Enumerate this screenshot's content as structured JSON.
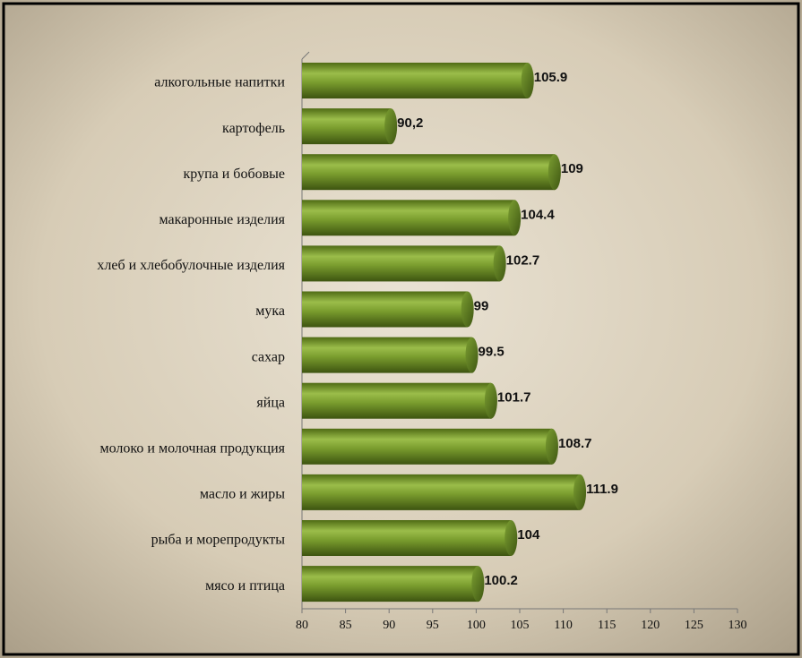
{
  "chart_data": {
    "type": "bar",
    "orientation": "horizontal",
    "categories": [
      "алкогольные напитки",
      "картофель",
      "крупа и бобовые",
      "макаронные изделия",
      "хлеб и хлебобулочные изделия",
      "мука",
      "сахар",
      "яйца",
      "молоко и молочная продукция",
      "масло и жиры",
      "рыба и морепродукты",
      "мясо и птица"
    ],
    "values": [
      105.9,
      90.2,
      109,
      104.4,
      102.7,
      99,
      99.5,
      101.7,
      108.7,
      111.9,
      104,
      100.2
    ],
    "value_labels": [
      "105.9",
      "90,2",
      "109",
      "104.4",
      "102.7",
      "99",
      "99.5",
      "101.7",
      "108.7",
      "111.9",
      "104",
      "100.2"
    ],
    "color": "#6b8e23",
    "xlim": [
      80,
      130
    ],
    "xticks": [
      80,
      85,
      90,
      95,
      100,
      105,
      110,
      115,
      120,
      125,
      130
    ]
  }
}
